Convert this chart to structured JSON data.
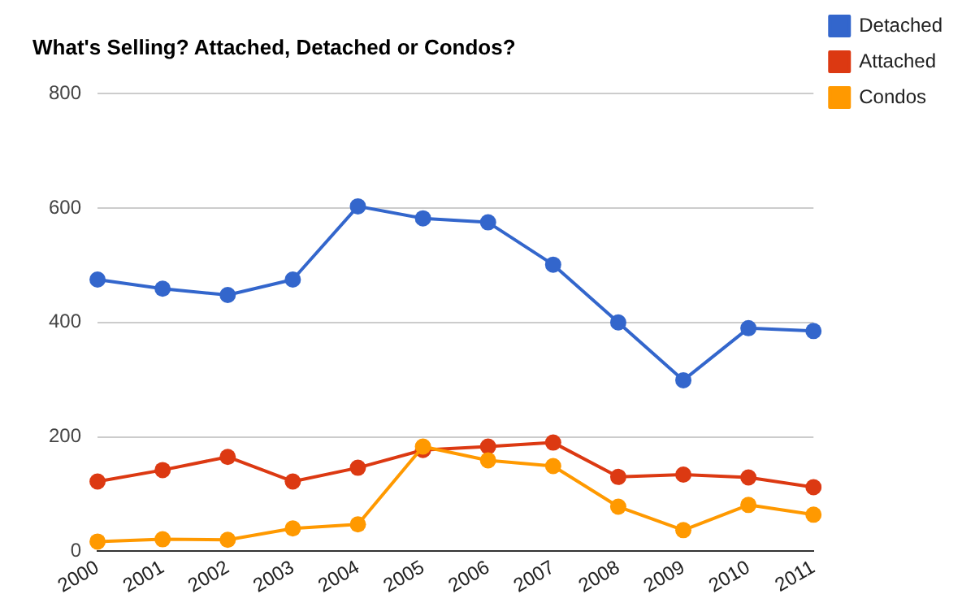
{
  "chart_data": {
    "type": "line",
    "title": "What's Selling? Attached, Detached or Condos?",
    "categories": [
      "2000",
      "2001",
      "2002",
      "2003",
      "2004",
      "2005",
      "2006",
      "2007",
      "2008",
      "2009",
      "2010",
      "2011"
    ],
    "series": [
      {
        "name": "Detached",
        "color": "#3366cc",
        "values": [
          475,
          459,
          448,
          475,
          603,
          582,
          575,
          501,
          400,
          299,
          390,
          385
        ]
      },
      {
        "name": "Attached",
        "color": "#dc3912",
        "values": [
          122,
          142,
          165,
          122,
          146,
          177,
          183,
          190,
          130,
          134,
          129,
          112
        ]
      },
      {
        "name": "Condos",
        "color": "#ff9900",
        "values": [
          17,
          21,
          20,
          40,
          47,
          183,
          159,
          149,
          78,
          37,
          81,
          64
        ]
      }
    ],
    "ylim": [
      0,
      800
    ],
    "yticks": [
      0,
      200,
      400,
      600,
      800
    ],
    "grid": "y",
    "legend": "right",
    "marker": "circle",
    "line_style": "solid"
  }
}
